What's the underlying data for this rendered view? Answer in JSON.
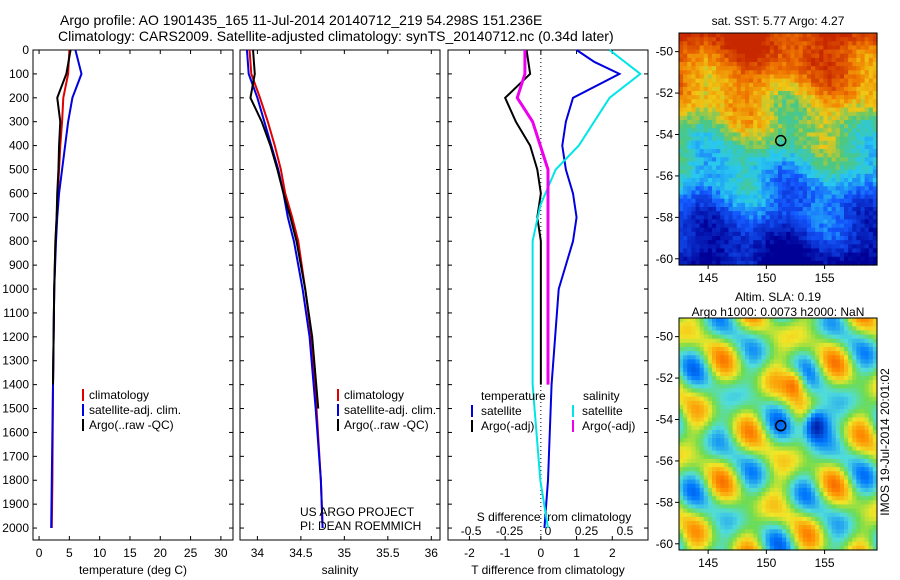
{
  "header": {
    "line1": "Argo profile: AO 1901435_165 11-Jul-2014 20140712_219 54.298S 151.236E",
    "line2": "Climatology: CARS2009. Satellite-adjusted climatology: synTS_20140712.nc (0.34d later)"
  },
  "colors": {
    "climatology": "#e00000",
    "satellite": "#0000e0",
    "argo": "#000000",
    "salinity_satellite": "#00e5e5",
    "salinity_argo": "#ee00ee"
  },
  "chart_data": [
    {
      "type": "line",
      "xlabel": "temperature (deg C)",
      "ylabel": "",
      "xlim": [
        -1,
        32
      ],
      "ylim": [
        2050,
        0
      ],
      "xticks": [
        0,
        5,
        10,
        15,
        20,
        25,
        30
      ],
      "yticks": [
        0,
        100,
        200,
        300,
        400,
        500,
        600,
        700,
        800,
        900,
        1000,
        1100,
        1200,
        1300,
        1400,
        1500,
        1600,
        1700,
        1800,
        1900,
        2000
      ],
      "legend": [
        "climatology",
        "satellite-adj. clim.",
        "Argo(..raw -QC)"
      ],
      "legend_position": "lower-right",
      "series": [
        {
          "name": "climatology",
          "color": "#e00000",
          "x": [
            5.0,
            4.8,
            4.0,
            3.8,
            3.5,
            3.3,
            3.1,
            2.9,
            2.7,
            2.5,
            2.3,
            2.2,
            2.1
          ],
          "y": [
            0,
            100,
            200,
            300,
            400,
            500,
            600,
            700,
            800,
            1000,
            1400,
            1800,
            2000
          ]
        },
        {
          "name": "satellite-adj. clim.",
          "color": "#0000e0",
          "x": [
            6.0,
            7.0,
            5.5,
            4.8,
            4.3,
            3.8,
            3.3,
            3.0,
            2.8,
            2.5,
            2.3,
            2.1,
            2.0
          ],
          "y": [
            0,
            100,
            200,
            300,
            400,
            500,
            600,
            700,
            800,
            1000,
            1400,
            1800,
            2000
          ]
        },
        {
          "name": "Argo(..raw -QC)",
          "color": "#000000",
          "x": [
            5.2,
            4.5,
            3.0,
            3.5,
            3.3,
            3.2,
            3.0,
            2.9,
            2.7,
            2.5,
            2.3
          ],
          "y": [
            0,
            100,
            200,
            300,
            400,
            500,
            600,
            700,
            800,
            1000,
            1400
          ]
        }
      ]
    },
    {
      "type": "line",
      "xlabel": "salinity",
      "ylabel": "",
      "xlim": [
        33.8,
        36.1
      ],
      "ylim": [
        2050,
        0
      ],
      "xticks": [
        34,
        34.5,
        35,
        35.5,
        36
      ],
      "legend": [
        "climatology",
        "satellite-adj. clim.",
        "Argo(..raw -QC)"
      ],
      "legend_position": "lower-right",
      "annotations": [
        "US ARGO PROJECT",
        "PI: DEAN ROEMMICH"
      ],
      "series": [
        {
          "name": "climatology",
          "color": "#e00000",
          "x": [
            33.91,
            33.93,
            34.03,
            34.12,
            34.2,
            34.27,
            34.32,
            34.4,
            34.47,
            34.55,
            34.62,
            34.68,
            34.73,
            34.75
          ],
          "y": [
            0,
            100,
            200,
            300,
            400,
            500,
            600,
            700,
            800,
            1000,
            1200,
            1500,
            1800,
            2000
          ]
        },
        {
          "name": "satellite-adj. clim.",
          "color": "#0000e0",
          "x": [
            33.88,
            33.9,
            34.0,
            34.08,
            34.16,
            34.24,
            34.3,
            34.35,
            34.42,
            34.52,
            34.6,
            34.67,
            34.73,
            34.75
          ],
          "y": [
            0,
            100,
            200,
            300,
            400,
            500,
            600,
            700,
            800,
            1000,
            1200,
            1500,
            1800,
            2000
          ]
        },
        {
          "name": "Argo(..raw -QC)",
          "color": "#000000",
          "x": [
            33.95,
            33.97,
            33.92,
            34.05,
            34.15,
            34.23,
            34.3,
            34.38,
            34.45,
            34.55,
            34.63,
            34.7
          ],
          "y": [
            0,
            100,
            200,
            300,
            400,
            500,
            600,
            700,
            800,
            1000,
            1200,
            1500
          ]
        }
      ]
    },
    {
      "type": "line",
      "xlabel": "T difference from climatology",
      "xlabel_top": "S difference from climatology",
      "xlim": [
        -2.6,
        3.0
      ],
      "ylim": [
        2050,
        0
      ],
      "xticks": [
        -2,
        -1,
        0,
        1,
        2
      ],
      "sticks": [
        -0.5,
        -0.25,
        0,
        0.25,
        0.5
      ],
      "stick_labels": [
        "-0.5",
        "-0.25",
        "0",
        "0.25",
        "0.5"
      ],
      "legend_headers": [
        "temperature",
        "salinity"
      ],
      "legend": [
        "satellite",
        "Argo(-adj)",
        "satellite",
        "Argo(-adj)"
      ],
      "legend_position": "lower-center",
      "series": [
        {
          "name": "satellite",
          "group": "temperature",
          "color": "#0000e0",
          "x": [
            1.0,
            1.5,
            2.2,
            0.9,
            0.7,
            0.6,
            0.7,
            0.9,
            1.0,
            0.9,
            0.5,
            0.3,
            0.2,
            0.1
          ],
          "y": [
            0,
            50,
            100,
            200,
            300,
            400,
            500,
            600,
            700,
            800,
            1000,
            1400,
            1800,
            2000
          ]
        },
        {
          "name": "Argo(-adj)",
          "group": "temperature",
          "color": "#000000",
          "x": [
            -0.4,
            -0.3,
            -1.0,
            -0.7,
            -0.3,
            -0.1,
            0.0,
            -0.1,
            0.0,
            0.0,
            0.0
          ],
          "y": [
            0,
            100,
            200,
            300,
            400,
            500,
            600,
            700,
            800,
            1000,
            1400
          ]
        },
        {
          "name": "satellite",
          "group": "salinity",
          "color": "#00e5e5",
          "x": [
            0.4,
            0.6,
            0.4,
            0.3,
            0.2,
            0.05,
            -0.05,
            -0.1,
            -0.1,
            -0.1,
            -0.05,
            0.0
          ],
          "y": [
            0,
            100,
            200,
            300,
            400,
            500,
            650,
            800,
            1000,
            1400,
            1800,
            2000
          ]
        },
        {
          "name": "Argo(-adj)",
          "group": "salinity",
          "color": "#ee00ee",
          "x": [
            -0.15,
            -0.15,
            -0.2,
            -0.1,
            -0.05,
            0.0,
            0.0,
            0.0,
            0.0,
            0.0
          ],
          "y": [
            0,
            100,
            200,
            300,
            400,
            500,
            600,
            800,
            1000,
            1400
          ]
        }
      ]
    },
    {
      "type": "heatmap",
      "title": "sat. SST: 5.77  Argo: 4.27",
      "xlim": [
        142.5,
        159.5
      ],
      "ylim": [
        -60.3,
        -49.1
      ],
      "xticks": [
        145,
        150,
        155
      ],
      "yticks": [
        -50,
        -52,
        -54,
        -56,
        -58,
        -60
      ],
      "marker": {
        "lon": 151.236,
        "lat": -54.298
      }
    },
    {
      "type": "heatmap",
      "title": "Altim. SLA: 0.19",
      "subtitle": "Argo h1000: 0.0073  h2000: NaN",
      "side_label": "IMOS 19-Jul-2014 20:01:02",
      "xlim": [
        142.5,
        159.5
      ],
      "ylim": [
        -60.3,
        -49.1
      ],
      "xticks": [
        145,
        150,
        155
      ],
      "yticks": [
        -50,
        -52,
        -54,
        -56,
        -58,
        -60
      ],
      "marker": {
        "lon": 151.236,
        "lat": -54.298
      }
    }
  ]
}
